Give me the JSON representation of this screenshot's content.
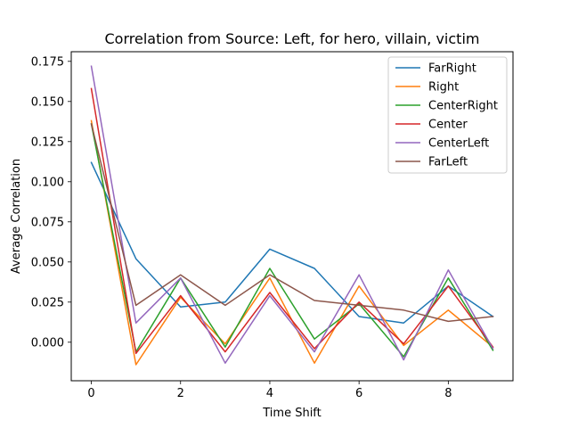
{
  "chart_data": {
    "type": "line",
    "title": "Correlation from Source: Left, for hero, villain, victim",
    "xlabel": "Time Shift",
    "ylabel": "Average Correlation",
    "x": [
      0,
      1,
      2,
      3,
      4,
      5,
      6,
      7,
      8,
      9
    ],
    "xlim": [
      -0.45,
      9.45
    ],
    "ylim": [
      -0.024,
      0.181
    ],
    "xticks": [
      0,
      2,
      4,
      6,
      8
    ],
    "yticks": [
      0.0,
      0.025,
      0.05,
      0.075,
      0.1,
      0.125,
      0.15,
      0.175
    ],
    "yticklabels": [
      "0.000",
      "0.025",
      "0.050",
      "0.075",
      "0.100",
      "0.125",
      "0.150",
      "0.175"
    ],
    "grid": false,
    "legend_position": "top-right",
    "series": [
      {
        "name": "FarRight",
        "color": "#1f77b4",
        "values": [
          0.112,
          0.052,
          0.022,
          0.025,
          0.058,
          0.046,
          0.016,
          0.012,
          0.035,
          0.016
        ]
      },
      {
        "name": "Right",
        "color": "#ff7f0e",
        "values": [
          0.138,
          -0.014,
          0.028,
          -0.001,
          0.04,
          -0.013,
          0.035,
          -0.002,
          0.02,
          -0.003
        ]
      },
      {
        "name": "CenterRight",
        "color": "#2ca02c",
        "values": [
          0.136,
          -0.006,
          0.04,
          -0.003,
          0.046,
          0.002,
          0.024,
          -0.009,
          0.04,
          -0.005
        ]
      },
      {
        "name": "Center",
        "color": "#d62728",
        "values": [
          0.158,
          -0.007,
          0.029,
          -0.006,
          0.031,
          -0.004,
          0.025,
          -0.001,
          0.035,
          -0.003
        ]
      },
      {
        "name": "CenterLeft",
        "color": "#9467bd",
        "values": [
          0.172,
          0.012,
          0.04,
          -0.013,
          0.029,
          -0.006,
          0.042,
          -0.011,
          0.045,
          -0.004
        ]
      },
      {
        "name": "FarLeft",
        "color": "#8c564b",
        "values": [
          0.136,
          0.023,
          0.042,
          0.023,
          0.042,
          0.026,
          0.023,
          0.02,
          0.013,
          0.016
        ]
      }
    ]
  }
}
